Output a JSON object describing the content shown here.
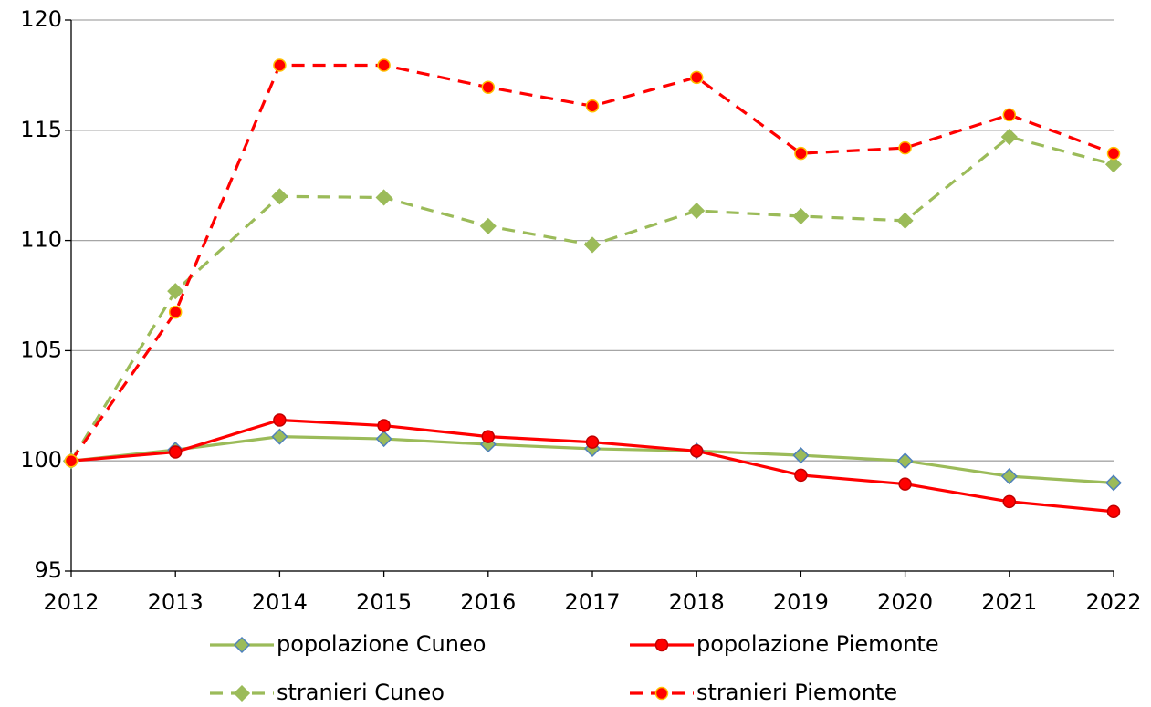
{
  "chart_data": {
    "type": "line",
    "x": [
      2012,
      2013,
      2014,
      2015,
      2016,
      2017,
      2018,
      2019,
      2020,
      2021,
      2022
    ],
    "xlim": [
      2012,
      2022
    ],
    "xticks": [
      2012,
      2013,
      2014,
      2015,
      2016,
      2017,
      2018,
      2019,
      2020,
      2021,
      2022
    ],
    "ylim": [
      95,
      120
    ],
    "yticks": [
      95,
      100,
      105,
      110,
      115,
      120
    ],
    "grid": true,
    "legend": "bottom",
    "series": [
      {
        "name": "popolazione Cuneo",
        "color": "#9bbb59",
        "marker": "diamond",
        "marker_edge": "#4f81bd",
        "dashed": false,
        "values": [
          100,
          100.5,
          101.1,
          101.0,
          100.75,
          100.55,
          100.45,
          100.25,
          100.0,
          99.3,
          99.0
        ]
      },
      {
        "name": "popolazione Piemonte",
        "color": "#ff0000",
        "marker": "circle",
        "marker_edge": "#c00000",
        "dashed": false,
        "values": [
          100,
          100.4,
          101.85,
          101.6,
          101.1,
          100.85,
          100.45,
          99.35,
          98.95,
          98.15,
          97.7
        ]
      },
      {
        "name": "stranieri Cuneo",
        "color": "#9bbb59",
        "marker": "diamond",
        "marker_edge": "#9bbb59",
        "dashed": true,
        "values": [
          100,
          107.7,
          112.0,
          111.95,
          110.65,
          109.8,
          111.35,
          111.1,
          110.9,
          114.7,
          113.45
        ]
      },
      {
        "name": "stranieri Piemonte",
        "color": "#ff0000",
        "marker": "circle",
        "marker_edge": "#ffc000",
        "dashed": true,
        "values": [
          100,
          106.75,
          117.95,
          117.95,
          116.95,
          116.1,
          117.4,
          113.95,
          114.2,
          115.7,
          113.95
        ]
      }
    ]
  }
}
